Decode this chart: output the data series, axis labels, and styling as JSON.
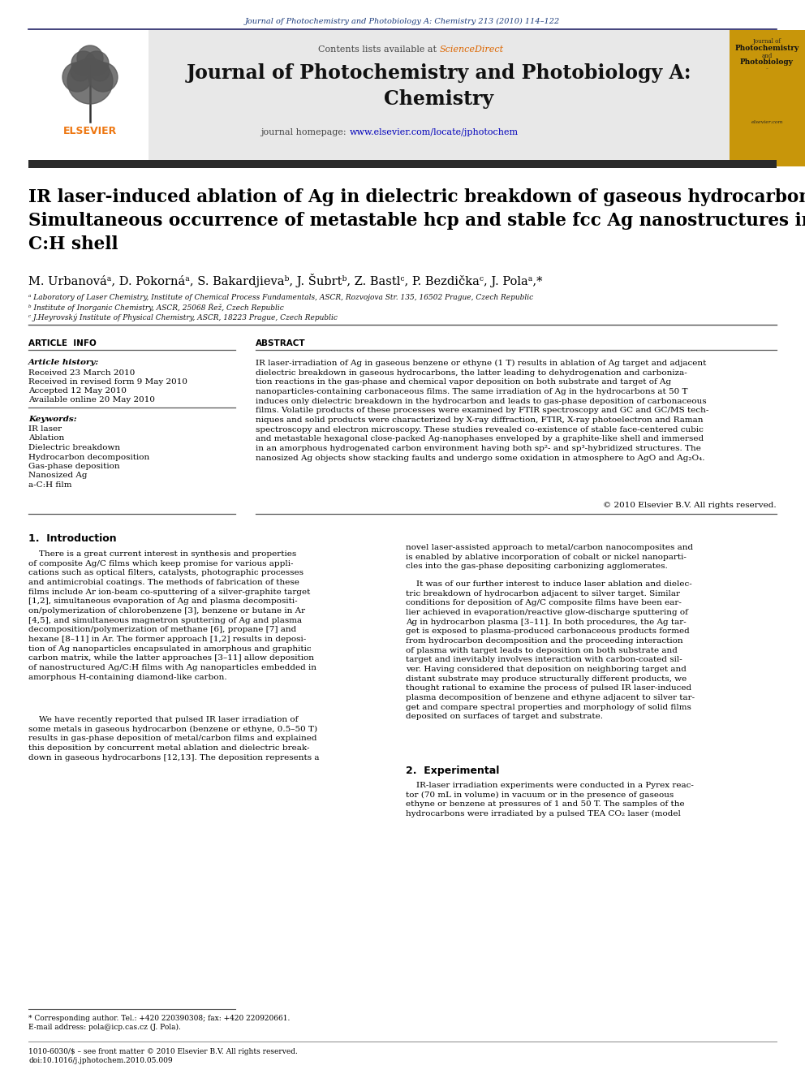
{
  "journal_header": "Journal of Photochemistry and Photobiology A: Chemistry 213 (2010) 114–122",
  "contents_line": "Contents lists available at ScienceDirect",
  "journal_title_line1": "Journal of Photochemistry and Photobiology A:",
  "journal_title_line2": "Chemistry",
  "journal_homepage_pre": "journal homepage: ",
  "journal_homepage_link": "www.elsevier.com/locate/jphotochem",
  "article_title": "IR laser-induced ablation of Ag in dielectric breakdown of gaseous hydrocarbons:\nSimultaneous occurrence of metastable hcp and stable fcc Ag nanostructures in\nC:H shell",
  "authors": "M. Urbanováᵃ, D. Pokornáᵃ, S. Bakardjievaᵇ, J. Šubrtᵇ, Z. Bastlᶜ, P. Bezdičkaᶜ, J. Polaᵃ,*",
  "affil_a": "ᵃ Laboratory of Laser Chemistry, Institute of Chemical Process Fundamentals, ASCR, Rozvojova Str. 135, 16502 Prague, Czech Republic",
  "affil_b": "ᵇ Institute of Inorganic Chemistry, ASCR, 25068 Řež, Czech Republic",
  "affil_c": "ᶜ J.Heyrovský Institute of Physical Chemistry, ASCR, 18223 Prague, Czech Republic",
  "article_info_title": "ARTICLE  INFO",
  "article_history_title": "Article history:",
  "received": "Received 23 March 2010",
  "received_revised": "Received in revised form 9 May 2010",
  "accepted": "Accepted 12 May 2010",
  "available": "Available online 20 May 2010",
  "keywords_title": "Keywords:",
  "keywords": [
    "IR laser",
    "Ablation",
    "Dielectric breakdown",
    "Hydrocarbon decomposition",
    "Gas-phase deposition",
    "Nanosized Ag",
    "a-C:H film"
  ],
  "abstract_title": "ABSTRACT",
  "abstract_text": "IR laser-irradiation of Ag in gaseous benzene or ethyne (1 T) results in ablation of Ag target and adjacent\ndielectric breakdown in gaseous hydrocarbons, the latter leading to dehydrogenation and carboniza-\ntion reactions in the gas-phase and chemical vapor deposition on both substrate and target of Ag\nnanoparticles-containing carbonaceous films. The same irradiation of Ag in the hydrocarbons at 50 T\ninduces only dielectric breakdown in the hydrocarbon and leads to gas-phase deposition of carbonaceous\nfilms. Volatile products of these processes were examined by FTIR spectroscopy and GC and GC/MS tech-\nniques and solid products were characterized by X-ray diffraction, FTIR, X-ray photoelectron and Raman\nspectroscopy and electron microscopy. These studies revealed co-existence of stable face-centered cubic\nand metastable hexagonal close-packed Ag-nanophases enveloped by a graphite-like shell and immersed\nin an amorphous hydrogenated carbon environment having both sp²- and sp³-hybridized structures. The\nnanosized Ag objects show stacking faults and undergo some oxidation in atmosphere to AgO and Ag₂O₄.",
  "copyright": "© 2010 Elsevier B.V. All rights reserved.",
  "intro_title": "1.  Introduction",
  "col1_intro_p1": "    There is a great current interest in synthesis and properties\nof composite Ag/C films which keep promise for various appli-\ncations such as optical filters, catalysts, photographic processes\nand antimicrobial coatings. The methods of fabrication of these\nfilms include Ar ion-beam co-sputtering of a silver-graphite target\n[1,2], simultaneous evaporation of Ag and plasma decompositi-\non/polymerization of chlorobenzene [3], benzene or butane in Ar\n[4,5], and simultaneous magnetron sputtering of Ag and plasma\ndecomposition/polymerization of methane [6], propane [7] and\nhexane [8–11] in Ar. The former approach [1,2] results in deposi-\ntion of Ag nanoparticles encapsulated in amorphous and graphitic\ncarbon matrix, while the latter approaches [3–11] allow deposition\nof nanostructured Ag/C:H films with Ag nanoparticles embedded in\namorphous H-containing diamond-like carbon.",
  "col1_intro_p2": "    We have recently reported that pulsed IR laser irradiation of\nsome metals in gaseous hydrocarbon (benzene or ethyne, 0.5–50 T)\nresults in gas-phase deposition of metal/carbon films and explained\nthis deposition by concurrent metal ablation and dielectric break-\ndown in gaseous hydrocarbons [12,13]. The deposition represents a",
  "col2_intro_p1": "novel laser-assisted approach to metal/carbon nanocomposites and\nis enabled by ablative incorporation of cobalt or nickel nanoparti-\ncles into the gas-phase depositing carbonizing agglomerates.",
  "col2_intro_p2": "    It was of our further interest to induce laser ablation and dielec-\ntric breakdown of hydrocarbon adjacent to silver target. Similar\nconditions for deposition of Ag/C composite films have been ear-\nlier achieved in evaporation/reactive glow-discharge sputtering of\nAg in hydrocarbon plasma [3–11]. In both procedures, the Ag tar-\nget is exposed to plasma-produced carbonaceous products formed\nfrom hydrocarbon decomposition and the proceeding interaction\nof plasma with target leads to deposition on both substrate and\ntarget and inevitably involves interaction with carbon-coated sil-\nver. Having considered that deposition on neighboring target and\ndistant substrate may produce structurally different products, we\nthought rational to examine the process of pulsed IR laser-induced\nplasma decomposition of benzene and ethyne adjacent to silver tar-\nget and compare spectral properties and morphology of solid films\ndeposited on surfaces of target and substrate.",
  "section2_title": "2.  Experimental",
  "sec2_text": "    IR-laser irradiation experiments were conducted in a Pyrex reac-\ntor (70 mL in volume) in vacuum or in the presence of gaseous\nethyne or benzene at pressures of 1 and 50 T. The samples of the\nhydrocarbons were irradiated by a pulsed TEA CO₂ laser (model",
  "footnote_line1": "* Corresponding author. Tel.: +420 220390308; fax: +420 220920661.",
  "footnote_line2": "E-mail address: pola@icp.cas.cz (J. Pola).",
  "issn_line": "1010-6030/$ – see front matter © 2010 Elsevier B.V. All rights reserved.",
  "doi_line": "doi:10.1016/j.jphotochem.2010.05.009",
  "bg_color": "#ffffff",
  "header_gray": "#e8e8e8",
  "dark_bar_color": "#2a2a2a",
  "journal_color": "#1a3a7a",
  "sciencedirect_color": "#dd6600",
  "link_color": "#0000bb",
  "text_color": "#000000",
  "gray_text": "#444444",
  "elsevier_orange": "#ee7711"
}
